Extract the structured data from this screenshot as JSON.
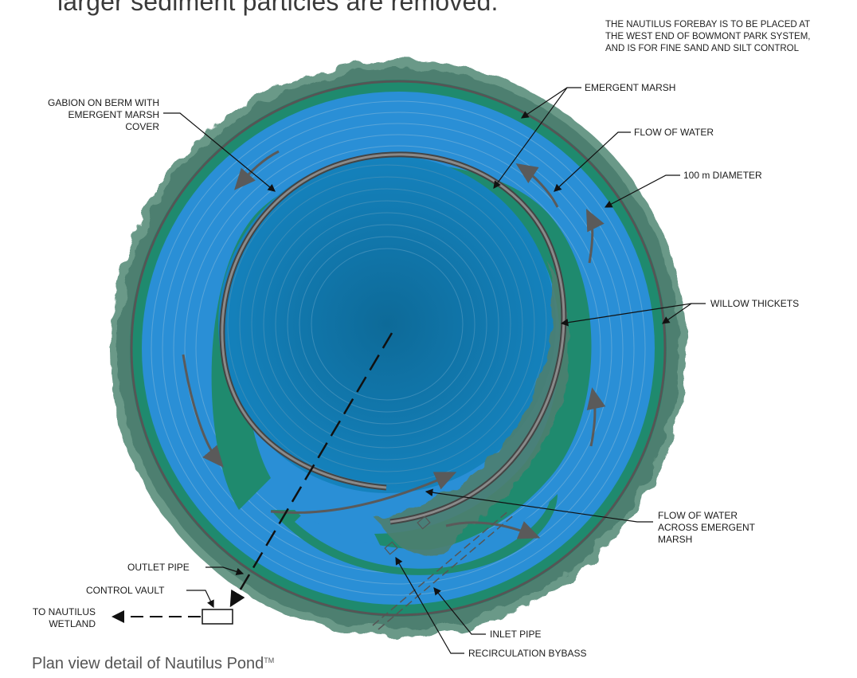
{
  "heading_partial": "larger sediment particles are removed.",
  "note": {
    "lines": [
      "THE NAUTILUS FOREBAY IS TO BE PLACED AT",
      "THE WEST END OF BOWMONT PARK SYSTEM,",
      "AND IS FOR FINE SAND AND SILT CONTROL"
    ]
  },
  "labels": {
    "gabion": [
      "GABION ON BERM WITH",
      "EMERGENT MARSH",
      "COVER"
    ],
    "emergent_marsh": "EMERGENT MARSH",
    "flow_of_water": "FLOW OF WATER",
    "diameter": "100 m DIAMETER",
    "willow_thickets": "WILLOW THICKETS",
    "flow_across": [
      "FLOW OF WATER",
      "ACROSS EMERGENT",
      "MARSH"
    ],
    "outlet_pipe": "OUTLET PIPE",
    "control_vault": "CONTROL VAULT",
    "to_wetland": [
      "TO NAUTILUS",
      "WETLAND"
    ],
    "inlet_pipe": "INLET PIPE",
    "recirculation_bypass": "RECIRCULATION BYBASS"
  },
  "caption": {
    "text": "Plan view detail of Nautilus  Pond",
    "trademark": "TM"
  },
  "colors": {
    "vegetation": "#5f8f7d",
    "vegetation_dark": "#3f6f62",
    "marsh_green": "#1f8a6e",
    "water_light": "#2a8fd6",
    "water_center": "#0f6e9e",
    "gabion": "#555555",
    "flow_arrow": "#666666"
  }
}
